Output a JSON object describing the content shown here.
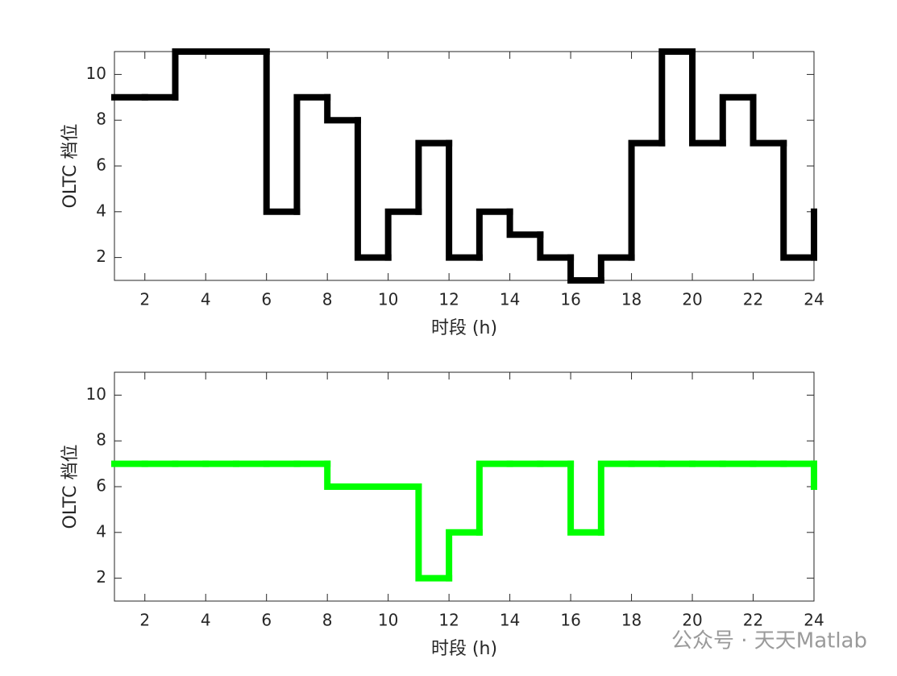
{
  "chart_data": [
    {
      "type": "stairs",
      "xlabel": "时段 (h)",
      "ylabel": "OLTC 档位",
      "color": "#000000",
      "x": [
        1,
        2,
        3,
        4,
        5,
        6,
        7,
        8,
        9,
        10,
        11,
        12,
        13,
        14,
        15,
        16,
        17,
        18,
        19,
        20,
        21,
        22,
        23,
        24
      ],
      "values": [
        9,
        9,
        11,
        11,
        11,
        4,
        9,
        8,
        2,
        4,
        7,
        2,
        4,
        3,
        2,
        1,
        2,
        7,
        11,
        7,
        9,
        7,
        2,
        4
      ],
      "xlim": [
        1,
        24
      ],
      "xticks": [
        2,
        4,
        6,
        8,
        10,
        12,
        14,
        16,
        18,
        20,
        22,
        24
      ],
      "ylim": [
        1,
        11
      ],
      "yticks": [
        2,
        4,
        6,
        8,
        10
      ]
    },
    {
      "type": "stairs",
      "xlabel": "时段 (h)",
      "ylabel": "OLTC 档位",
      "color": "#00ff00",
      "x": [
        1,
        2,
        3,
        4,
        5,
        6,
        7,
        8,
        9,
        10,
        11,
        12,
        13,
        14,
        15,
        16,
        17,
        18,
        19,
        20,
        21,
        22,
        23,
        24
      ],
      "values": [
        7,
        7,
        7,
        7,
        7,
        7,
        7,
        6,
        6,
        6,
        2,
        4,
        7,
        7,
        7,
        4,
        7,
        7,
        7,
        7,
        7,
        7,
        7,
        6
      ],
      "xlim": [
        1,
        24
      ],
      "xticks": [
        2,
        4,
        6,
        8,
        10,
        12,
        14,
        16,
        18,
        20,
        22,
        24
      ],
      "ylim": [
        1,
        11
      ],
      "yticks": [
        2,
        4,
        6,
        8,
        10
      ]
    }
  ],
  "watermark": "公众号 · 天天Matlab"
}
